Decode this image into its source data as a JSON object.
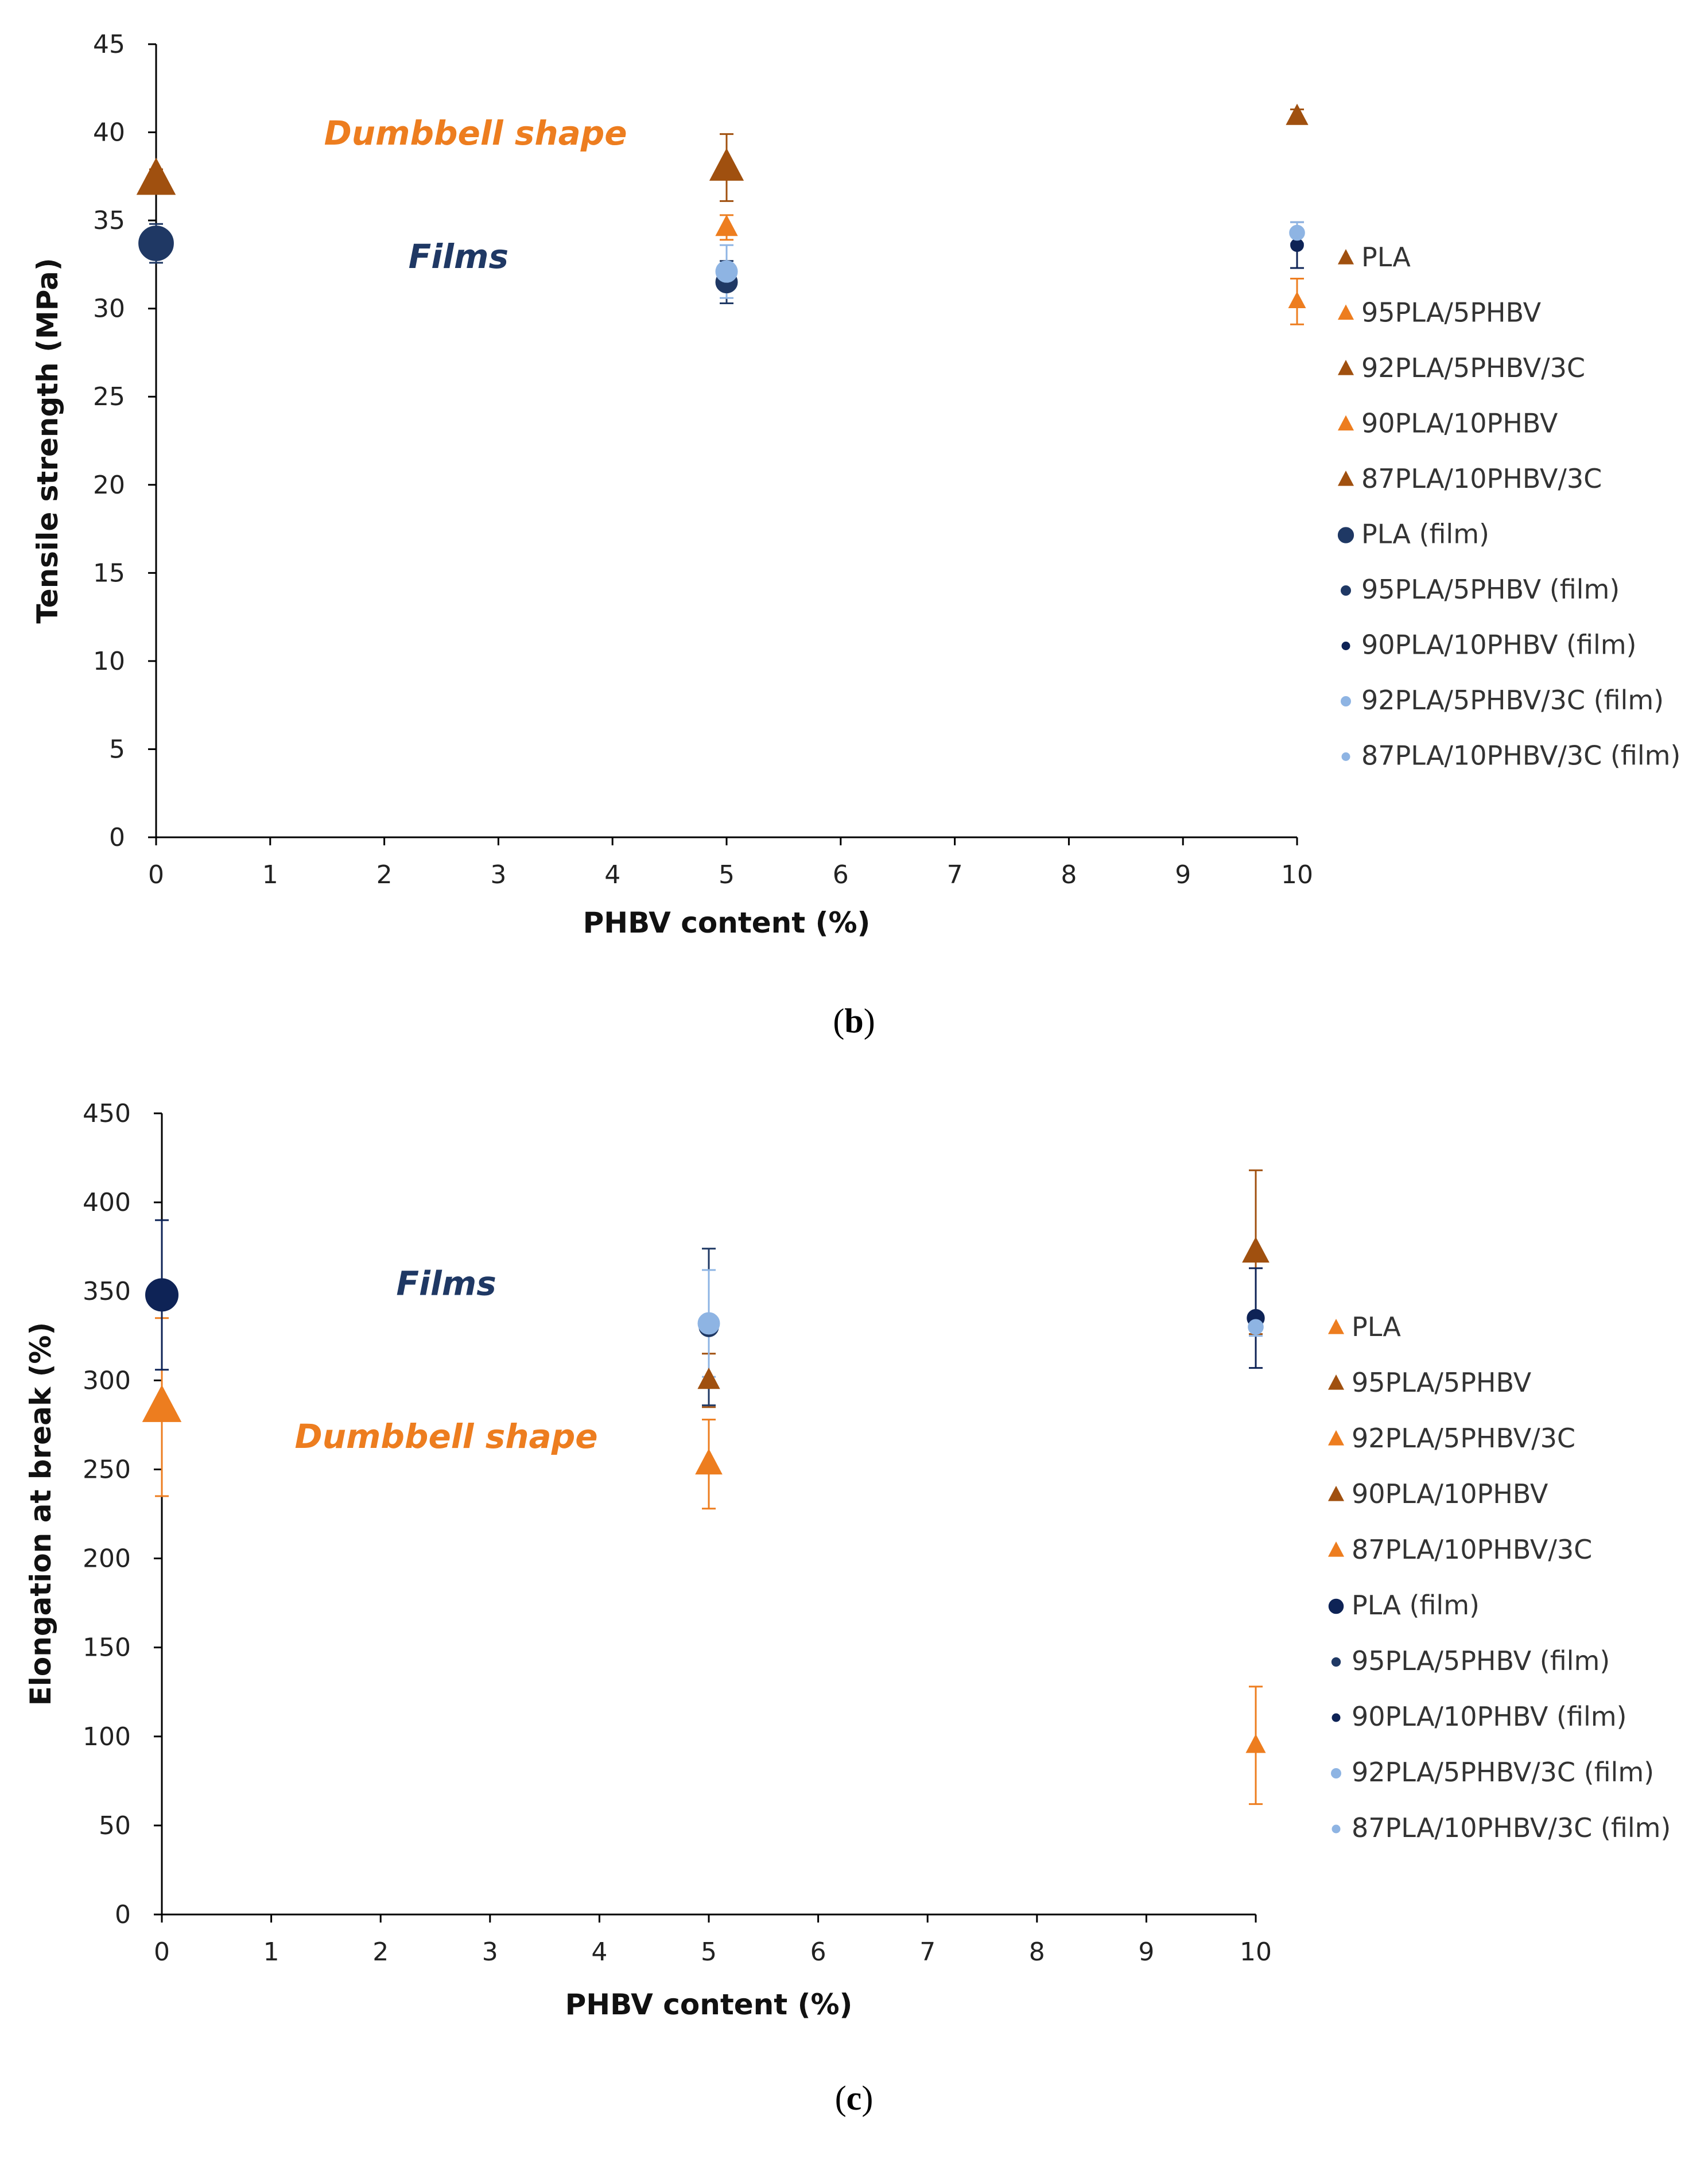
{
  "colors": {
    "dark_orange": "#A0500F",
    "orange": "#ED7D1F",
    "navy": "#1F3864",
    "dark_navy": "#0E2356",
    "light_blue": "#8EB4E3",
    "axis": "#000000"
  },
  "panels": [
    {
      "id": "b",
      "label": "b"
    },
    {
      "id": "c",
      "label": "c"
    }
  ],
  "chart_data": [
    {
      "id": "b",
      "type": "scatter",
      "title": "",
      "xlabel": "PHBV content (%)",
      "ylabel": "Tensile strength  (MPa)",
      "xlim": [
        0,
        10
      ],
      "ylim": [
        0,
        45
      ],
      "xticks": [
        "0",
        "1",
        "2",
        "3",
        "4",
        "5",
        "6",
        "7",
        "8",
        "9",
        "10"
      ],
      "yticks": [
        "0",
        "5",
        "10",
        "15",
        "20",
        "25",
        "30",
        "35",
        "40",
        "45"
      ],
      "annotations": [
        {
          "text": "Dumbbell shape",
          "color": "#ED7D1F",
          "x": 2.8,
          "y": 39.3
        },
        {
          "text": "Films",
          "color": "#1F3864",
          "x": 2.65,
          "y": 32.3
        }
      ],
      "series": [
        {
          "name": "PLA",
          "marker": "triangle",
          "size": 16,
          "color": "#A0500F",
          "points": [
            {
              "x": 0,
              "y": 37.3,
              "err": 0.6
            }
          ]
        },
        {
          "name": "95PLA/5PHBV",
          "marker": "triangle",
          "size": 9,
          "color": "#ED7D1F",
          "points": [
            {
              "x": 5,
              "y": 34.6,
              "err": 0.7
            }
          ]
        },
        {
          "name": "92PLA/5PHBV/3C",
          "marker": "triangle",
          "size": 14,
          "color": "#A0500F",
          "points": [
            {
              "x": 5,
              "y": 38.0,
              "err": 1.9
            }
          ]
        },
        {
          "name": "90PLA/10PHBV",
          "marker": "triangle",
          "size": 7,
          "color": "#ED7D1F",
          "points": [
            {
              "x": 10,
              "y": 30.4,
              "err": 1.3
            }
          ]
        },
        {
          "name": "87PLA/10PHBV/3C",
          "marker": "triangle",
          "size": 9,
          "color": "#A0500F",
          "points": [
            {
              "x": 10,
              "y": 40.9,
              "err": 0.4
            }
          ]
        },
        {
          "name": "PLA (film)",
          "marker": "circle",
          "size": 16,
          "color": "#1F3864",
          "points": [
            {
              "x": 0,
              "y": 33.7,
              "err": 1.1
            }
          ]
        },
        {
          "name": "95PLA/5PHBV (film)",
          "marker": "circle",
          "size": 10,
          "color": "#1F3864",
          "points": [
            {
              "x": 5,
              "y": 31.5,
              "err": 1.2
            }
          ]
        },
        {
          "name": "90PLA/10PHBV (film)",
          "marker": "circle",
          "size": 6,
          "color": "#0E2356",
          "points": [
            {
              "x": 10,
              "y": 33.6,
              "err": 1.3
            }
          ]
        },
        {
          "name": "92PLA/5PHBV/3C (film)",
          "marker": "circle",
          "size": 10,
          "color": "#8EB4E3",
          "points": [
            {
              "x": 5,
              "y": 32.1,
              "err": 1.5
            }
          ]
        },
        {
          "name": "87PLA/10PHBV/3C (film)",
          "marker": "circle",
          "size": 7,
          "color": "#8EB4E3",
          "points": [
            {
              "x": 10,
              "y": 34.3,
              "err": 0.6
            }
          ]
        }
      ]
    },
    {
      "id": "c",
      "type": "scatter",
      "title": "",
      "xlabel": "PHBV content (%)",
      "ylabel": "Elongation at break (%)",
      "xlim": [
        0,
        10
      ],
      "ylim": [
        0,
        450
      ],
      "xticks": [
        "0",
        "1",
        "2",
        "3",
        "4",
        "5",
        "6",
        "7",
        "8",
        "9",
        "10"
      ],
      "yticks": [
        "0",
        "50",
        "100",
        "150",
        "200",
        "250",
        "300",
        "350",
        "400",
        "450"
      ],
      "annotations": [
        {
          "text": "Films",
          "color": "#1F3864",
          "x": 2.6,
          "y": 348
        },
        {
          "text": "Dumbbell shape",
          "color": "#ED7D1F",
          "x": 2.6,
          "y": 262
        }
      ],
      "series": [
        {
          "name": "PLA",
          "marker": "triangle",
          "size": 16,
          "color": "#ED7D1F",
          "points": [
            {
              "x": 0,
              "y": 285,
              "err": 50
            }
          ]
        },
        {
          "name": "95PLA/5PHBV",
          "marker": "triangle",
          "size": 9,
          "color": "#A0500F",
          "points": [
            {
              "x": 5,
              "y": 300,
              "err": 15
            }
          ]
        },
        {
          "name": "92PLA/5PHBV/3C",
          "marker": "triangle",
          "size": 11,
          "color": "#ED7D1F",
          "points": [
            {
              "x": 5,
              "y": 253,
              "err": 25
            }
          ]
        },
        {
          "name": "90PLA/10PHBV",
          "marker": "triangle",
          "size": 11,
          "color": "#A0500F",
          "points": [
            {
              "x": 10,
              "y": 372,
              "err": 46
            }
          ]
        },
        {
          "name": "87PLA/10PHBV/3C",
          "marker": "triangle",
          "size": 8,
          "color": "#ED7D1F",
          "points": [
            {
              "x": 10,
              "y": 95,
              "err": 33
            }
          ]
        },
        {
          "name": "PLA (film)",
          "marker": "circle",
          "size": 15,
          "color": "#0E2356",
          "points": [
            {
              "x": 0,
              "y": 348,
              "err": 42
            }
          ]
        },
        {
          "name": "95PLA/5PHBV (film)",
          "marker": "circle",
          "size": 9,
          "color": "#1F3864",
          "points": [
            {
              "x": 5,
              "y": 330,
              "err": 44
            }
          ]
        },
        {
          "name": "90PLA/10PHBV (film)",
          "marker": "circle",
          "size": 8,
          "color": "#0E2356",
          "points": [
            {
              "x": 10,
              "y": 335,
              "err": 28
            }
          ]
        },
        {
          "name": "92PLA/5PHBV/3C (film)",
          "marker": "circle",
          "size": 10,
          "color": "#8EB4E3",
          "points": [
            {
              "x": 5,
              "y": 332,
              "err": 30
            }
          ]
        },
        {
          "name": "87PLA/10PHBV/3C (film)",
          "marker": "circle",
          "size": 7,
          "color": "#8EB4E3",
          "points": [
            {
              "x": 10,
              "y": 330,
              "err": 5
            }
          ]
        }
      ]
    }
  ]
}
